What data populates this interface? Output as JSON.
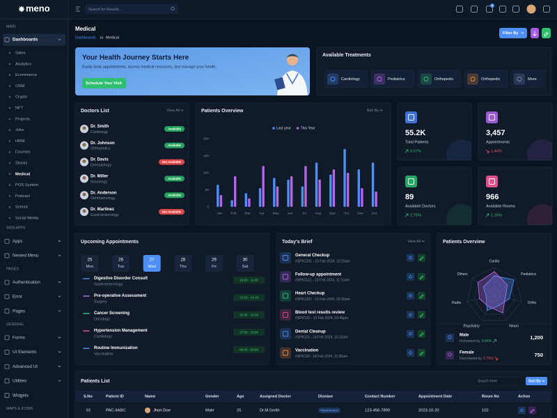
{
  "brand": "meno",
  "header": {
    "search_placeholder": "Search for Results...",
    "cart_badge": "5"
  },
  "sidebar": {
    "groups": [
      {
        "title": "MAIN",
        "items": [
          {
            "label": "Dashboards",
            "active": true,
            "submenu": true,
            "children": [
              {
                "label": "Sales"
              },
              {
                "label": "Analytics"
              },
              {
                "label": "Ecommerce"
              },
              {
                "label": "CRM"
              },
              {
                "label": "Crypto"
              },
              {
                "label": "NFT"
              },
              {
                "label": "Projects"
              },
              {
                "label": "Jobs"
              },
              {
                "label": "HRM"
              },
              {
                "label": "Courses"
              },
              {
                "label": "Stocks"
              },
              {
                "label": "Medical",
                "active": true
              },
              {
                "label": "POS System"
              },
              {
                "label": "Podcast"
              },
              {
                "label": "School"
              },
              {
                "label": "Social Media"
              }
            ]
          }
        ]
      },
      {
        "title": "WEB APPS",
        "items": [
          {
            "label": "Apps",
            "submenu": true
          },
          {
            "label": "Nested Menu",
            "submenu": true
          }
        ]
      },
      {
        "title": "PAGES",
        "items": [
          {
            "label": "Authentication",
            "submenu": true
          },
          {
            "label": "Error",
            "submenu": true
          },
          {
            "label": "Pages",
            "submenu": true
          }
        ]
      },
      {
        "title": "GENERAL",
        "items": [
          {
            "label": "Forms",
            "submenu": true
          },
          {
            "label": "UI Elements",
            "submenu": true
          },
          {
            "label": "Advanced UI",
            "submenu": true
          },
          {
            "label": "Utilities",
            "submenu": true
          },
          {
            "label": "Widgets",
            "submenu": false
          }
        ]
      },
      {
        "title": "MAPS & ICONS",
        "items": []
      }
    ]
  },
  "page": {
    "title": "Medical",
    "breadcrumb": [
      "Dashboards",
      "Medical"
    ],
    "filter_button": "Filter By"
  },
  "hero": {
    "title": "Your Health Journey Starts Here",
    "text": "Easily book appointments, access medical resources, and manage your health.",
    "button": "Schedule Your Visit"
  },
  "treatments": {
    "title": "Available Treatments",
    "items": [
      {
        "label": "Cardiology",
        "color": "#4d8ef7"
      },
      {
        "label": "Pediatrics",
        "color": "#b565e8"
      },
      {
        "label": "Orthopedic",
        "color": "#2fbf71"
      },
      {
        "label": "Orthopedic",
        "color": "#f08a3c"
      },
      {
        "label": "More",
        "color": "#6f86b0"
      }
    ]
  },
  "doctors": {
    "title": "Doctors List",
    "view_all": "View All",
    "items": [
      {
        "name": "Dr. Smith",
        "specialty": "Cardiology",
        "status": "Available",
        "available": true
      },
      {
        "name": "Dr. Johnson",
        "specialty": "Orthopedics",
        "status": "Available",
        "available": true
      },
      {
        "name": "Dr. Davis",
        "specialty": "Dermatology",
        "status": "Not Available",
        "available": false
      },
      {
        "name": "Dr. Miller",
        "specialty": "Neurology",
        "status": "Available",
        "available": true
      },
      {
        "name": "Dr. Anderson",
        "specialty": "Ophthalmology",
        "status": "Available",
        "available": true
      },
      {
        "name": "Dr. Martinez",
        "specialty": "Gastroenterology",
        "status": "Not Available",
        "available": false
      }
    ]
  },
  "patients_overview": {
    "title": "Patients Overview",
    "sort": "Sort By",
    "chart_data": {
      "type": "bar",
      "categories": [
        "Jan",
        "Feb",
        "Mar",
        "Apr",
        "May",
        "Jun",
        "Jul",
        "Aug",
        "Sep",
        "Oct",
        "Nov",
        "Dec"
      ],
      "series": [
        {
          "name": "Last year",
          "color": "#4d8ef7",
          "values": [
            65,
            20,
            40,
            55,
            85,
            80,
            60,
            130,
            95,
            170,
            110,
            130
          ]
        },
        {
          "name": "This Year",
          "color": "#b565e8",
          "values": [
            35,
            90,
            25,
            120,
            60,
            90,
            120,
            80,
            110,
            100,
            55,
            45
          ]
        }
      ],
      "ylim": [
        0,
        200
      ],
      "yticks": [
        0,
        50,
        100,
        150,
        200
      ]
    }
  },
  "stats": [
    {
      "value": "55.2K",
      "label": "Total Patients",
      "change": "0.67%",
      "trend": "up",
      "color": "#3f74d8"
    },
    {
      "value": "3,457",
      "label": "Appointments",
      "change": "1.44%",
      "trend": "down",
      "color": "#9b5ad6"
    },
    {
      "value": "89",
      "label": "Available Doctors",
      "change": "2.75%",
      "trend": "up",
      "color": "#24a863"
    },
    {
      "value": "966",
      "label": "Available Rooms",
      "change": "1.16%",
      "trend": "up",
      "color": "#e0508c"
    }
  ],
  "appointments": {
    "title": "Upcoming Appointments",
    "days": [
      {
        "date": "25",
        "day": "Mon"
      },
      {
        "date": "26",
        "day": "Tue"
      },
      {
        "date": "27",
        "day": "Wed",
        "active": true
      },
      {
        "date": "28",
        "day": "Thu"
      },
      {
        "date": "29",
        "day": "Fri"
      },
      {
        "date": "30",
        "day": "Sat"
      }
    ],
    "items": [
      {
        "title": "Digestive Disorder Consult",
        "dept": "Gastroenterology",
        "time": "10:00 - 11:00",
        "color": "#4d8ef7"
      },
      {
        "title": "Pre-operative Assessment",
        "dept": "Surgery",
        "time": "13:15 - 14:15",
        "color": "#b565e8"
      },
      {
        "title": "Cancer Screening",
        "dept": "Oncology",
        "time": "15:30 - 16:30",
        "color": "#2fbf71"
      },
      {
        "title": "Hypertension Management",
        "dept": "Cardiology",
        "time": "17:00 - 18:00",
        "color": "#e0508c"
      },
      {
        "title": "Routine Immunization",
        "dept": "Vaccination",
        "time": "08:30 - 09:30",
        "color": "#4d8ef7"
      }
    ]
  },
  "brief": {
    "title": "Today's Brief",
    "view_all": "View All",
    "items": [
      {
        "title": "General Checkup",
        "meta": "#SPK1201 - 13 Feb 2024, 10:25am",
        "color": "#4d8ef7"
      },
      {
        "title": "Follow-up appointment",
        "meta": "#SPK1121 - 13 Feb 2024, 11:15am",
        "color": "#b565e8"
      },
      {
        "title": "Heart Checkup",
        "meta": "#SPK1201 - 13 Feb 2024, 02:30pm",
        "color": "#2fbf71"
      },
      {
        "title": "Blood test results review",
        "meta": "#SPK132 - 13 Feb 2024, 03:45pm",
        "color": "#e0508c"
      },
      {
        "title": "Dental Cleanup",
        "meta": "#SPK115 - 14 Feb 2024, 10:15am",
        "color": "#4d8ef7"
      },
      {
        "title": "Vaccination",
        "meta": "#SPK118 - 14 Feb 2024, 11:30am",
        "color": "#f08a3c"
      }
    ]
  },
  "gender": {
    "title": "Patients Overview",
    "chart_data": {
      "type": "radar",
      "axes": [
        "Cardio",
        "Pediatrics",
        "Ortho",
        "Neuro",
        "Psychiatry",
        "Radio",
        "Others"
      ],
      "rlim": [
        0,
        100
      ],
      "series": [
        {
          "color": "#4d8ef7",
          "values": [
            70,
            90,
            55,
            40,
            60,
            30,
            50
          ]
        },
        {
          "color": "#b565e8",
          "values": [
            85,
            60,
            40,
            70,
            45,
            55,
            75
          ]
        }
      ]
    },
    "rows": [
      {
        "label": "Male",
        "note": "Increased by",
        "change": "0.64%",
        "trend": "up",
        "value": "1,200",
        "color": "#4d8ef7"
      },
      {
        "label": "Female",
        "note": "Decreased by",
        "change": "2.75%",
        "trend": "down",
        "value": "750",
        "color": "#b565e8"
      }
    ]
  },
  "table": {
    "title": "Patients List",
    "search_placeholder": "Search Here",
    "sort": "Sort By",
    "columns": [
      "S.No",
      "Patient ID",
      "Name",
      "Gender",
      "Age",
      "Assigned Doctor",
      "Disease",
      "Contact Number",
      "Appointment Date",
      "Room No",
      "Action"
    ],
    "rows": [
      [
        "01",
        "PAC-9ABC",
        "Jhon Doe",
        "Male",
        "25",
        "Dr.M.Smith",
        "Hypertension",
        "123-456-7890",
        "2023-10-20",
        "102"
      ]
    ]
  }
}
